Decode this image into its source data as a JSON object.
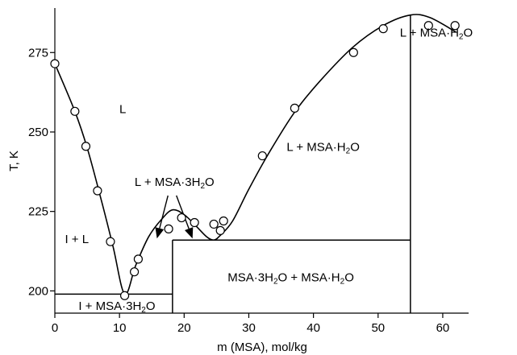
{
  "chart_data": {
    "type": "scatter",
    "title": "",
    "xlabel": "m (MSA), mol/kg",
    "ylabel": "T, K",
    "xlim": [
      0,
      64
    ],
    "ylim": [
      193,
      289
    ],
    "x_ticks": [
      "0",
      "10",
      "20",
      "30",
      "40",
      "50",
      "60"
    ],
    "y_ticks": [
      "200",
      "225",
      "250",
      "275"
    ],
    "grid": false,
    "series": [
      {
        "points": [
          [
            0,
            271.5
          ],
          [
            3.1,
            256.5
          ],
          [
            4.8,
            245.5
          ],
          [
            6.6,
            231.5
          ],
          [
            8.6,
            215.5
          ],
          [
            10.8,
            198.5
          ],
          [
            12.3,
            206.0
          ],
          [
            12.9,
            210.0
          ],
          [
            17.6,
            219.5
          ],
          [
            19.6,
            223.0
          ],
          [
            21.6,
            221.5
          ],
          [
            24.6,
            221.0
          ],
          [
            25.6,
            219.0
          ],
          [
            26.1,
            222.0
          ],
          [
            32.1,
            242.5
          ],
          [
            37.1,
            257.5
          ],
          [
            46.2,
            275.0
          ],
          [
            50.8,
            282.5
          ],
          [
            57.8,
            283.5
          ],
          [
            61.9,
            283.5
          ]
        ]
      }
    ],
    "liquidus": [
      [
        0,
        271.5
      ],
      [
        3.1,
        256.5
      ],
      [
        5,
        245
      ],
      [
        7,
        230
      ],
      [
        9,
        214
      ],
      [
        10.8,
        199
      ],
      [
        12.5,
        208
      ],
      [
        14.5,
        217
      ],
      [
        16.5,
        222.5
      ],
      [
        18.2,
        225.5
      ],
      [
        20,
        224
      ],
      [
        21.8,
        220.5
      ],
      [
        23.5,
        217
      ],
      [
        24.6,
        216
      ],
      [
        25.6,
        217.5
      ],
      [
        27.5,
        222
      ],
      [
        30,
        232
      ],
      [
        33,
        243
      ],
      [
        37,
        256
      ],
      [
        41,
        266
      ],
      [
        46,
        276.5
      ],
      [
        50.8,
        283.5
      ],
      [
        55,
        286.8
      ],
      [
        58,
        286
      ],
      [
        62,
        281.5
      ]
    ],
    "phase_lines": {
      "eutectic1_T": 199,
      "eutectic1_x": [
        0,
        18.2
      ],
      "eutectic2_T": 216,
      "eutectic2_x": [
        18.2,
        55
      ],
      "compound1_x": 18.2,
      "compound1_T": [
        193,
        216
      ],
      "compound2_x": 55,
      "compound2_T": [
        193,
        286.8
      ]
    },
    "annotations": [
      {
        "label": "L",
        "x": 10.5,
        "y": 256
      },
      {
        "label": "L + MSA·3H2O",
        "x": 18.5,
        "y": 233
      },
      {
        "label": "L + MSA·H2O",
        "x": 41.5,
        "y": 244
      },
      {
        "label": "L + MSA·H2O",
        "x": 59,
        "y": 280
      },
      {
        "label": "I + L",
        "x": 3.4,
        "y": 215
      },
      {
        "label": "I + MSA·3H2O",
        "x": 9.6,
        "y": 194
      },
      {
        "label": "MSA·3H2O + MSA·H2O",
        "x": 36.5,
        "y": 203
      }
    ],
    "arrows": [
      {
        "from": [
          17.5,
          230
        ],
        "to": [
          15.8,
          216.5
        ]
      },
      {
        "from": [
          18.8,
          230
        ],
        "to": [
          21.3,
          216.5
        ]
      }
    ]
  }
}
